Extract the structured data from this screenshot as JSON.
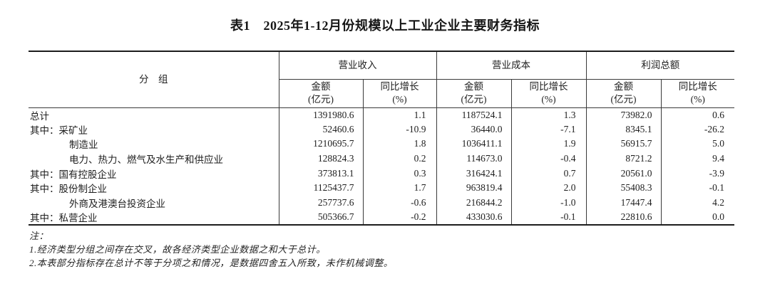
{
  "title": "表1　2025年1-12月份规模以上工业企业主要财务指标",
  "table": {
    "group_col_header": "分　组",
    "col_groups": [
      "营业收入",
      "营业成本",
      "利润总额"
    ],
    "sub_headers": {
      "amount_line1": "金额",
      "amount_line2": "(亿元)",
      "growth_line1": "同比增长",
      "growth_line2": "(%)"
    },
    "rows": [
      {
        "prefix": "",
        "label": "总计",
        "indent": false,
        "cells": [
          "1391980.6",
          "1.1",
          "1187524.1",
          "1.3",
          "73982.0",
          "0.6"
        ]
      },
      {
        "prefix": "其中：",
        "label": "采矿业",
        "indent": false,
        "cells": [
          "52460.6",
          "-10.9",
          "36440.0",
          "-7.1",
          "8345.1",
          "-26.2"
        ]
      },
      {
        "prefix": "",
        "label": "制造业",
        "indent": true,
        "cells": [
          "1210695.7",
          "1.8",
          "1036411.1",
          "1.9",
          "56915.7",
          "5.0"
        ]
      },
      {
        "prefix": "",
        "label": "电力、热力、燃气及水生产和供应业",
        "indent": true,
        "cells": [
          "128824.3",
          "0.2",
          "114673.0",
          "-0.4",
          "8721.2",
          "9.4"
        ]
      },
      {
        "prefix": "其中：",
        "label": "国有控股企业",
        "indent": false,
        "cells": [
          "373813.1",
          "0.3",
          "316424.1",
          "0.7",
          "20561.0",
          "-3.9"
        ]
      },
      {
        "prefix": "其中：",
        "label": "股份制企业",
        "indent": false,
        "cells": [
          "1125437.7",
          "1.7",
          "963819.4",
          "2.0",
          "55408.3",
          "-0.1"
        ]
      },
      {
        "prefix": "",
        "label": "外商及港澳台投资企业",
        "indent": true,
        "cells": [
          "257737.6",
          "-0.6",
          "216844.2",
          "-1.0",
          "17447.4",
          "4.2"
        ]
      },
      {
        "prefix": "其中：",
        "label": "私营企业",
        "indent": false,
        "cells": [
          "505366.7",
          "-0.2",
          "433030.6",
          "-0.1",
          "22810.6",
          "0.0"
        ]
      }
    ]
  },
  "notes": {
    "heading": "注：",
    "items": [
      "1.经济类型分组之间存在交叉，故各经济类型企业数据之和大于总计。",
      "2.本表部分指标存在总计不等于分项之和情况，是数据四舍五入所致，未作机械调整。"
    ]
  }
}
